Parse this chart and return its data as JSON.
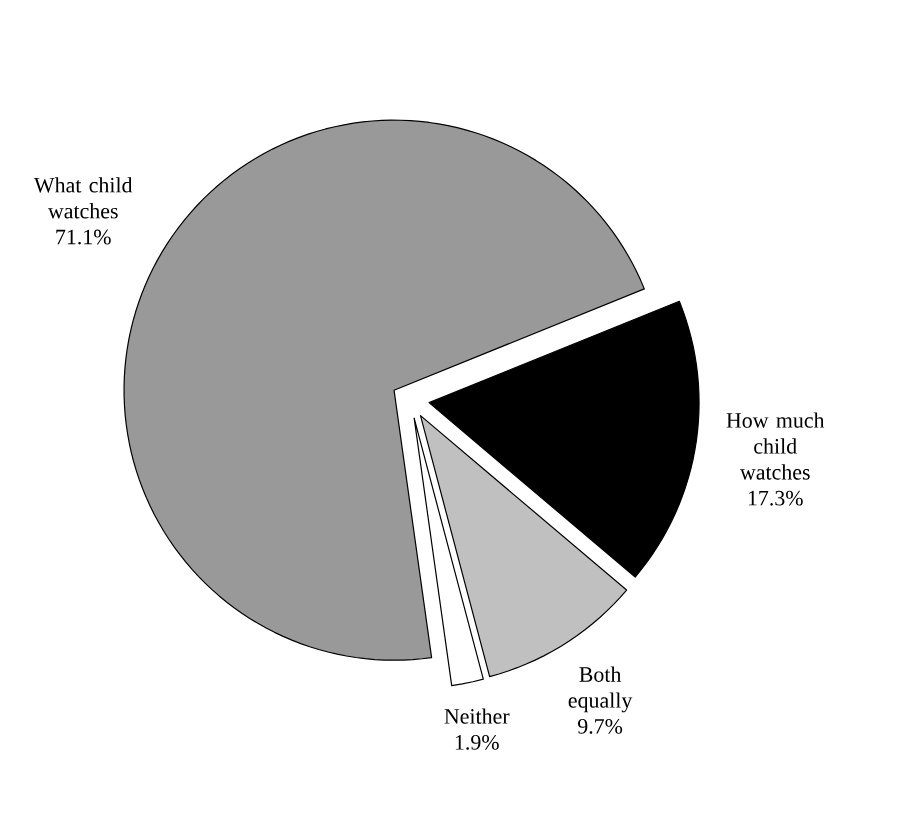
{
  "chart_data": {
    "type": "pie",
    "categories": [
      "What child watches",
      "How much child watches",
      "Both equally",
      "Neither"
    ],
    "values": [
      71.1,
      17.3,
      9.7,
      1.9
    ],
    "colors": [
      "#999999",
      "#000000",
      "#c0c0c0",
      "#ffffff"
    ],
    "value_labels": [
      "71.1%",
      "17.3%",
      "9.7%",
      "1.9%"
    ]
  }
}
